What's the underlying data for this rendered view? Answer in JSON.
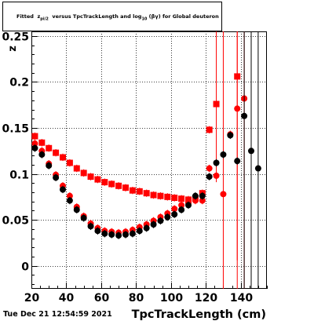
{
  "title": {
    "prefix": "Fitted",
    "z": "z",
    "z_sub": "pi/2",
    "middle": "versus TpcTrackLength and log",
    "log_sub": "10",
    "suffix": "(βγ) for Global deuteron"
  },
  "timestamp": "Tue Dec 21 12:54:59 2021",
  "chart_data": {
    "type": "scatter",
    "xlabel": "TpcTrackLength (cm)",
    "ylabel": "z",
    "xlim": [
      20,
      155
    ],
    "ylim": [
      -0.025,
      0.255
    ],
    "grid": true,
    "xticks": [
      20,
      40,
      60,
      80,
      100,
      120,
      140
    ],
    "yticks": [
      0,
      0.05,
      0.1,
      0.15,
      0.2,
      0.25
    ],
    "ytick_labels": [
      "0",
      "0.05",
      "0.1",
      "0.15",
      "0.2",
      "0.25"
    ],
    "colors": {
      "black": "#000000",
      "red": "#ff0000"
    },
    "series": [
      {
        "marker": "square",
        "color": "#ff0000",
        "points": [
          {
            "x": 22,
            "y": 0.141
          },
          {
            "x": 26,
            "y": 0.134
          },
          {
            "x": 30,
            "y": 0.128
          },
          {
            "x": 34,
            "y": 0.123
          },
          {
            "x": 38,
            "y": 0.118
          },
          {
            "x": 42,
            "y": 0.112
          },
          {
            "x": 46,
            "y": 0.106
          },
          {
            "x": 50,
            "y": 0.101
          },
          {
            "x": 54,
            "y": 0.097
          },
          {
            "x": 58,
            "y": 0.094
          },
          {
            "x": 62,
            "y": 0.091
          },
          {
            "x": 66,
            "y": 0.089
          },
          {
            "x": 70,
            "y": 0.087
          },
          {
            "x": 74,
            "y": 0.085
          },
          {
            "x": 78,
            "y": 0.082
          },
          {
            "x": 82,
            "y": 0.081
          },
          {
            "x": 86,
            "y": 0.079
          },
          {
            "x": 90,
            "y": 0.077
          },
          {
            "x": 94,
            "y": 0.076
          },
          {
            "x": 98,
            "y": 0.075
          },
          {
            "x": 102,
            "y": 0.074
          },
          {
            "x": 106,
            "y": 0.073
          },
          {
            "x": 110,
            "y": 0.072
          },
          {
            "x": 114,
            "y": 0.073
          },
          {
            "x": 118,
            "y": 0.079
          },
          {
            "x": 122,
            "y": 0.148
          },
          {
            "x": 126,
            "y": 0.176,
            "err": 0.085
          },
          {
            "x": 138,
            "y": 0.206,
            "err": 0.2
          }
        ]
      },
      {
        "marker": "circle",
        "color": "#ff0000",
        "points": [
          {
            "x": 22,
            "y": 0.133
          },
          {
            "x": 26,
            "y": 0.125
          },
          {
            "x": 30,
            "y": 0.111
          },
          {
            "x": 34,
            "y": 0.099
          },
          {
            "x": 38,
            "y": 0.087
          },
          {
            "x": 42,
            "y": 0.076
          },
          {
            "x": 46,
            "y": 0.064
          },
          {
            "x": 50,
            "y": 0.054
          },
          {
            "x": 54,
            "y": 0.046
          },
          {
            "x": 58,
            "y": 0.041
          },
          {
            "x": 62,
            "y": 0.038
          },
          {
            "x": 66,
            "y": 0.037
          },
          {
            "x": 70,
            "y": 0.036
          },
          {
            "x": 74,
            "y": 0.037
          },
          {
            "x": 78,
            "y": 0.039
          },
          {
            "x": 82,
            "y": 0.042
          },
          {
            "x": 86,
            "y": 0.045
          },
          {
            "x": 90,
            "y": 0.049
          },
          {
            "x": 94,
            "y": 0.053
          },
          {
            "x": 98,
            "y": 0.057
          },
          {
            "x": 102,
            "y": 0.062
          },
          {
            "x": 106,
            "y": 0.066
          },
          {
            "x": 110,
            "y": 0.068
          },
          {
            "x": 114,
            "y": 0.071
          },
          {
            "x": 118,
            "y": 0.071
          },
          {
            "x": 122,
            "y": 0.106
          },
          {
            "x": 126,
            "y": 0.098
          },
          {
            "x": 130,
            "y": 0.078,
            "err": 0.25
          },
          {
            "x": 134,
            "y": 0.143
          },
          {
            "x": 138,
            "y": 0.171,
            "err": 0.25
          },
          {
            "x": 142,
            "y": 0.182,
            "err": 0.25
          }
        ]
      },
      {
        "marker": "circle",
        "color": "#000000",
        "points": [
          {
            "x": 22,
            "y": 0.128
          },
          {
            "x": 26,
            "y": 0.121
          },
          {
            "x": 30,
            "y": 0.109
          },
          {
            "x": 34,
            "y": 0.096
          },
          {
            "x": 38,
            "y": 0.083
          },
          {
            "x": 42,
            "y": 0.071
          },
          {
            "x": 46,
            "y": 0.061
          },
          {
            "x": 50,
            "y": 0.052
          },
          {
            "x": 54,
            "y": 0.043
          },
          {
            "x": 58,
            "y": 0.038
          },
          {
            "x": 62,
            "y": 0.035
          },
          {
            "x": 66,
            "y": 0.034
          },
          {
            "x": 70,
            "y": 0.033
          },
          {
            "x": 74,
            "y": 0.034
          },
          {
            "x": 78,
            "y": 0.035
          },
          {
            "x": 82,
            "y": 0.038
          },
          {
            "x": 86,
            "y": 0.041
          },
          {
            "x": 90,
            "y": 0.045
          },
          {
            "x": 94,
            "y": 0.049
          },
          {
            "x": 98,
            "y": 0.053
          },
          {
            "x": 102,
            "y": 0.056
          },
          {
            "x": 106,
            "y": 0.061
          },
          {
            "x": 110,
            "y": 0.066
          },
          {
            "x": 114,
            "y": 0.076
          },
          {
            "x": 118,
            "y": 0.076
          },
          {
            "x": 122,
            "y": 0.097
          },
          {
            "x": 126,
            "y": 0.112
          },
          {
            "x": 130,
            "y": 0.121
          },
          {
            "x": 134,
            "y": 0.142
          },
          {
            "x": 138,
            "y": 0.114
          },
          {
            "x": 142,
            "y": 0.163,
            "err": 0.25
          },
          {
            "x": 146,
            "y": 0.125,
            "err": 0.25
          },
          {
            "x": 150,
            "y": 0.106,
            "err": 0.25
          }
        ]
      }
    ]
  }
}
